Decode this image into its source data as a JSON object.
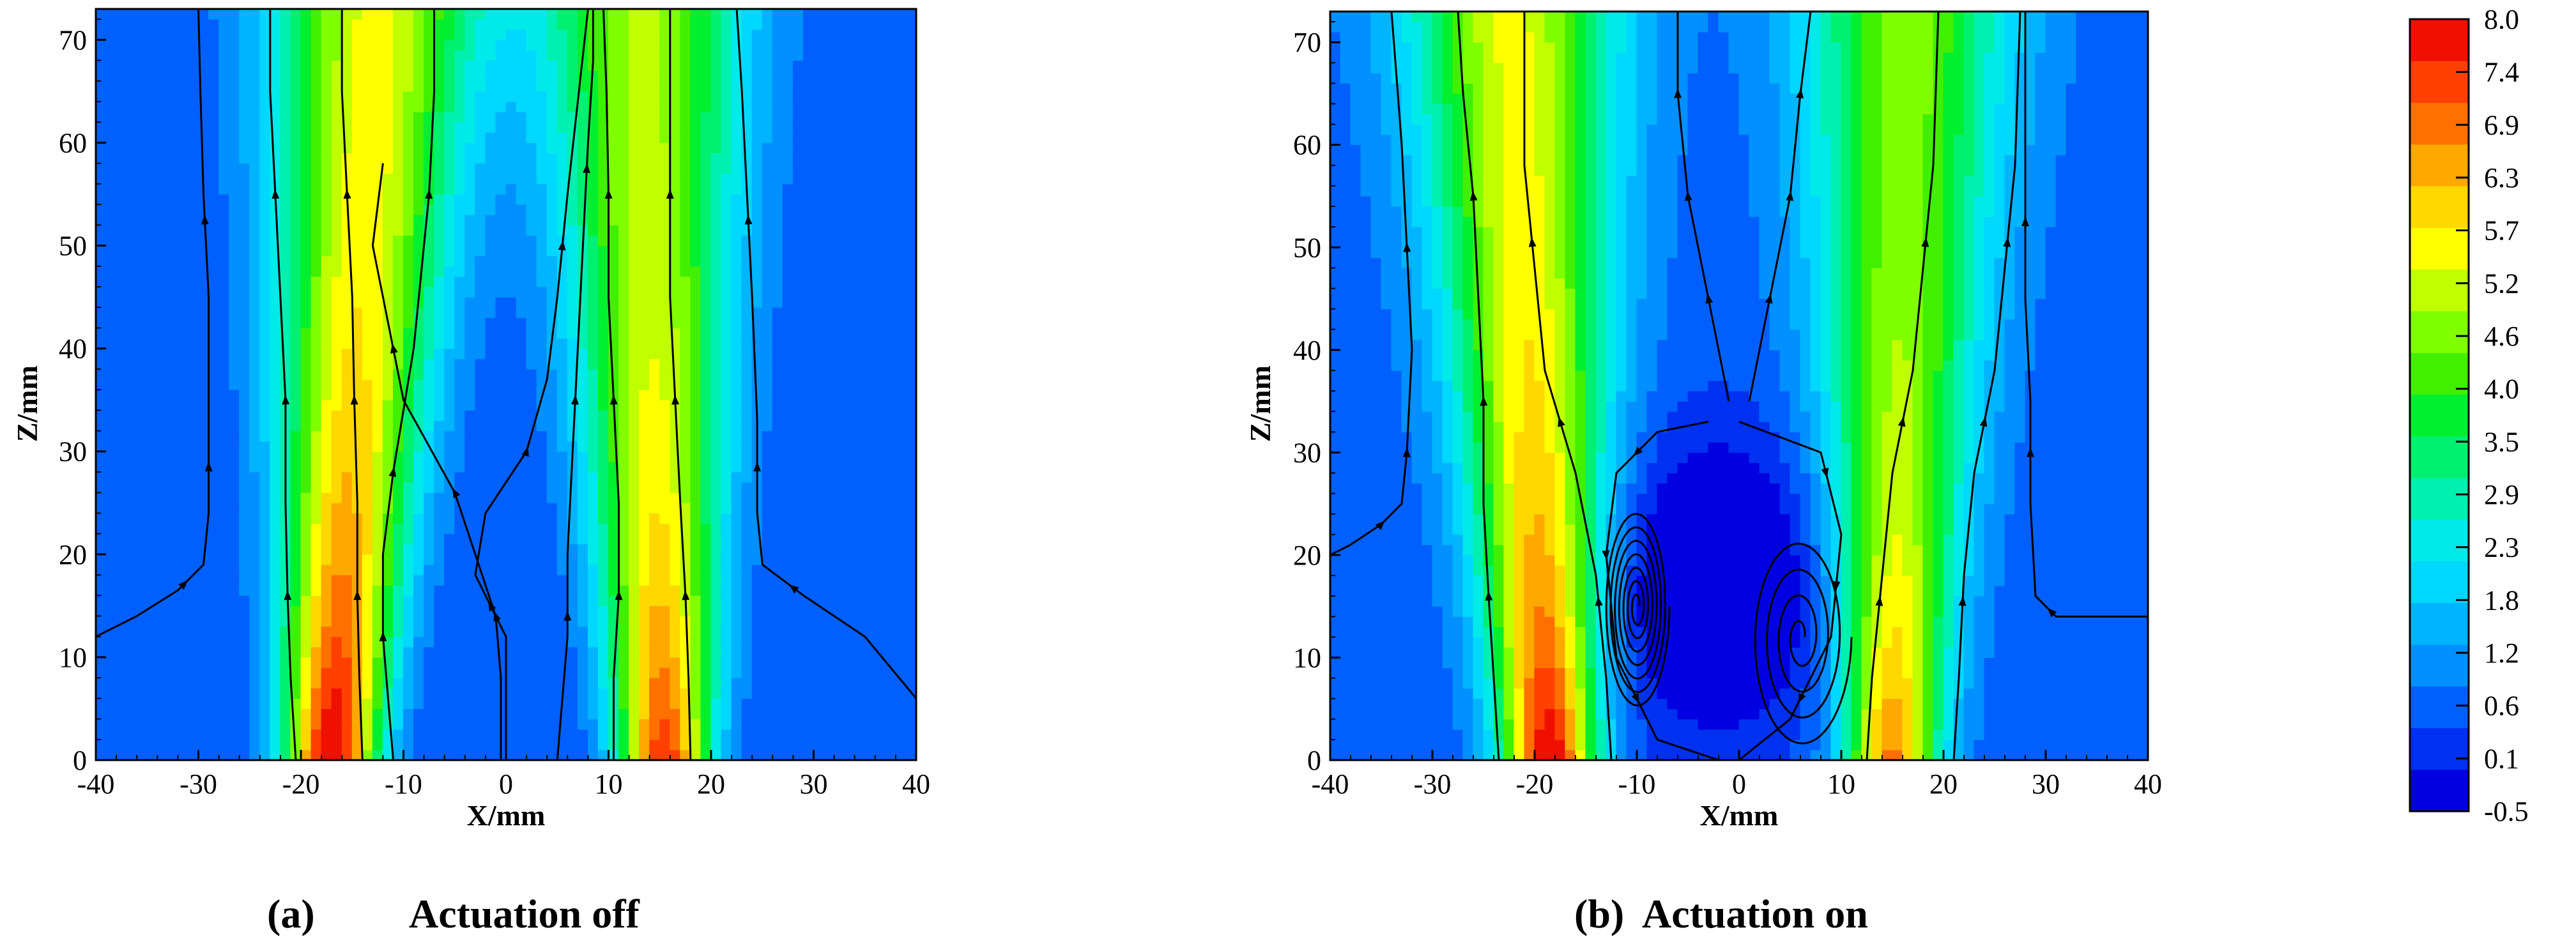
{
  "chart_data": [
    {
      "type": "heatmap",
      "caption_tag": "(a)",
      "caption_text": "Actuation off",
      "xlabel": "X/mm",
      "ylabel": "Z/mm",
      "xlim": [
        -40,
        40
      ],
      "ylim": [
        0,
        73
      ],
      "x_ticks": [
        -40,
        -30,
        -20,
        -10,
        0,
        10,
        20,
        30,
        40
      ],
      "y_ticks": [
        0,
        10,
        20,
        30,
        40,
        50,
        60,
        70
      ],
      "jets": [
        {
          "x_center_at_base": -17,
          "peak_value": 8.0,
          "drift_per_mm_z": 0.06
        },
        {
          "x_center_at_base": 15.5,
          "peak_value": 7.2,
          "drift_per_mm_z": -0.03
        }
      ],
      "background_value": 0.4,
      "streamlines": [
        [
          [
            -40,
            12
          ],
          [
            -36,
            14
          ],
          [
            -32,
            16.5
          ],
          [
            -29.5,
            19
          ],
          [
            -29,
            24
          ],
          [
            -29,
            33
          ],
          [
            -29,
            45
          ],
          [
            -29.5,
            55
          ],
          [
            -29.8,
            65
          ],
          [
            -30,
            73
          ]
        ],
        [
          [
            -20.5,
            0
          ],
          [
            -21,
            8
          ],
          [
            -21.3,
            16
          ],
          [
            -21.5,
            25
          ],
          [
            -21.5,
            35
          ],
          [
            -22,
            45
          ],
          [
            -22.5,
            55
          ],
          [
            -23,
            65
          ],
          [
            -23,
            73
          ]
        ],
        [
          [
            -14,
            0
          ],
          [
            -14.3,
            8
          ],
          [
            -14.5,
            16
          ],
          [
            -14.5,
            25
          ],
          [
            -14.8,
            35
          ],
          [
            -15,
            45
          ],
          [
            -15.5,
            55
          ],
          [
            -16,
            65
          ],
          [
            -16,
            73
          ]
        ],
        [
          [
            -11,
            0
          ],
          [
            -11.5,
            6
          ],
          [
            -12,
            12
          ],
          [
            -12,
            20
          ],
          [
            -11,
            28
          ],
          [
            -9,
            40
          ],
          [
            -7.5,
            55
          ],
          [
            -7,
            65
          ],
          [
            -7,
            73
          ]
        ],
        [
          [
            -0.5,
            0
          ],
          [
            -0.5,
            8
          ],
          [
            -1,
            14
          ],
          [
            -3,
            20
          ],
          [
            -5,
            26
          ],
          [
            -10,
            35
          ],
          [
            -11,
            40
          ],
          [
            -13,
            50
          ],
          [
            -12,
            58
          ]
        ],
        [
          [
            0,
            0
          ],
          [
            0,
            5
          ],
          [
            0,
            12
          ],
          [
            -3,
            18
          ],
          [
            -2,
            24
          ],
          [
            2,
            30
          ],
          [
            4,
            37
          ],
          [
            5,
            45
          ],
          [
            6,
            55
          ],
          [
            7,
            64
          ],
          [
            8,
            73
          ]
        ],
        [
          [
            5,
            0
          ],
          [
            5.5,
            6
          ],
          [
            6,
            12
          ],
          [
            6,
            20
          ],
          [
            6.5,
            30
          ],
          [
            7,
            40
          ],
          [
            7.5,
            50
          ],
          [
            8,
            60
          ],
          [
            8.5,
            68
          ],
          [
            8.5,
            73
          ]
        ],
        [
          [
            10.5,
            0
          ],
          [
            10.5,
            8
          ],
          [
            11,
            16
          ],
          [
            11,
            25
          ],
          [
            10.5,
            35
          ],
          [
            10,
            45
          ],
          [
            10,
            55
          ],
          [
            9.8,
            65
          ],
          [
            9.5,
            73
          ]
        ],
        [
          [
            18,
            0
          ],
          [
            17.8,
            8
          ],
          [
            17.5,
            16
          ],
          [
            17,
            25
          ],
          [
            16.5,
            35
          ],
          [
            16,
            45
          ],
          [
            16,
            55
          ],
          [
            16,
            65
          ],
          [
            16,
            73
          ]
        ],
        [
          [
            40,
            6
          ],
          [
            35,
            12
          ],
          [
            29,
            16
          ],
          [
            25,
            19
          ],
          [
            24.5,
            24
          ],
          [
            24.5,
            33
          ],
          [
            24,
            45
          ],
          [
            23.5,
            55
          ],
          [
            23,
            65
          ],
          [
            22.5,
            73
          ]
        ]
      ]
    },
    {
      "type": "heatmap",
      "caption_tag": "(b)",
      "caption_text": "Actuation on",
      "xlabel": "X/mm",
      "ylabel": "Z/mm",
      "xlim": [
        -40,
        40
      ],
      "ylim": [
        0,
        73
      ],
      "x_ticks": [
        -40,
        -30,
        -20,
        -10,
        0,
        10,
        20,
        30,
        40
      ],
      "y_ticks": [
        0,
        10,
        20,
        30,
        40,
        50,
        60,
        70
      ],
      "jets": [
        {
          "x_center_at_base": -18.5,
          "peak_value": 7.6,
          "drift_per_mm_z": -0.05
        },
        {
          "x_center_at_base": 15,
          "peak_value": 6.3,
          "drift_per_mm_z": 0.02
        }
      ],
      "background_value": 0.6,
      "low_region": {
        "x_center": -2,
        "z_center": 17,
        "x_radius": 11,
        "z_radius": 15,
        "min_value": -0.5
      },
      "vortices": [
        {
          "x": -10,
          "z": 15,
          "rx_max": 3.2,
          "rz_max": 10,
          "turns": 7
        },
        {
          "x": 6,
          "z": 12,
          "rx_max": 5,
          "rz_max": 11,
          "turns": 4
        }
      ],
      "streamlines": [
        [
          [
            -40,
            20
          ],
          [
            -38,
            21
          ],
          [
            -35,
            23
          ],
          [
            -33,
            25
          ],
          [
            -32.5,
            30
          ],
          [
            -32,
            40
          ],
          [
            -32.5,
            50
          ],
          [
            -33,
            60
          ],
          [
            -34,
            73
          ]
        ],
        [
          [
            -23.5,
            0
          ],
          [
            -24,
            8
          ],
          [
            -24.5,
            16
          ],
          [
            -25,
            25
          ],
          [
            -25,
            35
          ],
          [
            -25.5,
            45
          ],
          [
            -26,
            55
          ],
          [
            -27,
            65
          ],
          [
            -27.5,
            73
          ]
        ],
        [
          [
            -12.5,
            0
          ],
          [
            -13,
            8
          ],
          [
            -14,
            18
          ],
          [
            -16,
            28
          ],
          [
            -19,
            38
          ],
          [
            -20,
            48
          ],
          [
            -21,
            58
          ],
          [
            -21,
            73
          ]
        ],
        [
          [
            12.5,
            0
          ],
          [
            13,
            8
          ],
          [
            14,
            18
          ],
          [
            15,
            28
          ],
          [
            17,
            38
          ],
          [
            18,
            48
          ],
          [
            19,
            58
          ],
          [
            19.5,
            73
          ]
        ],
        [
          [
            21,
            0
          ],
          [
            21.5,
            8
          ],
          [
            22,
            18
          ],
          [
            23,
            28
          ],
          [
            25,
            38
          ],
          [
            26,
            48
          ],
          [
            27,
            58
          ],
          [
            27.5,
            73
          ]
        ],
        [
          [
            40,
            14
          ],
          [
            35,
            14
          ],
          [
            31,
            14
          ],
          [
            29,
            16
          ],
          [
            28.5,
            25
          ],
          [
            28.5,
            35
          ],
          [
            28,
            45
          ],
          [
            28,
            55
          ],
          [
            28,
            65
          ],
          [
            28,
            73
          ]
        ],
        [
          [
            -3,
            33
          ],
          [
            -8,
            32
          ],
          [
            -12,
            28
          ],
          [
            -13,
            20
          ],
          [
            -12,
            10
          ],
          [
            -8,
            2
          ],
          [
            -2,
            0
          ]
        ],
        [
          [
            0,
            33
          ],
          [
            8,
            30
          ],
          [
            10,
            22
          ],
          [
            9,
            12
          ],
          [
            5,
            4
          ],
          [
            0,
            0
          ]
        ],
        [
          [
            -1,
            35
          ],
          [
            -3,
            45
          ],
          [
            -5,
            55
          ],
          [
            -6,
            65
          ],
          [
            -6,
            73
          ]
        ],
        [
          [
            1,
            35
          ],
          [
            3,
            45
          ],
          [
            5,
            55
          ],
          [
            6,
            65
          ],
          [
            7,
            73
          ]
        ]
      ]
    }
  ],
  "colorbar": {
    "min": -0.5,
    "max": 8.0,
    "tick_labels": [
      "8.0",
      "7.4",
      "6.9",
      "6.3",
      "5.7",
      "5.2",
      "4.6",
      "4.0",
      "3.5",
      "2.9",
      "2.3",
      "1.8",
      "1.2",
      "0.6",
      "0.1",
      "-0.5"
    ],
    "colors": [
      "#0000e0",
      "#0030f0",
      "#0060ff",
      "#0090ff",
      "#00b4ff",
      "#00d8ff",
      "#00eaea",
      "#00f0b0",
      "#00f070",
      "#00f030",
      "#40f000",
      "#80ff00",
      "#c0ff00",
      "#ffff00",
      "#ffd800",
      "#ffa800",
      "#ff7000",
      "#ff4000",
      "#f01000"
    ]
  }
}
